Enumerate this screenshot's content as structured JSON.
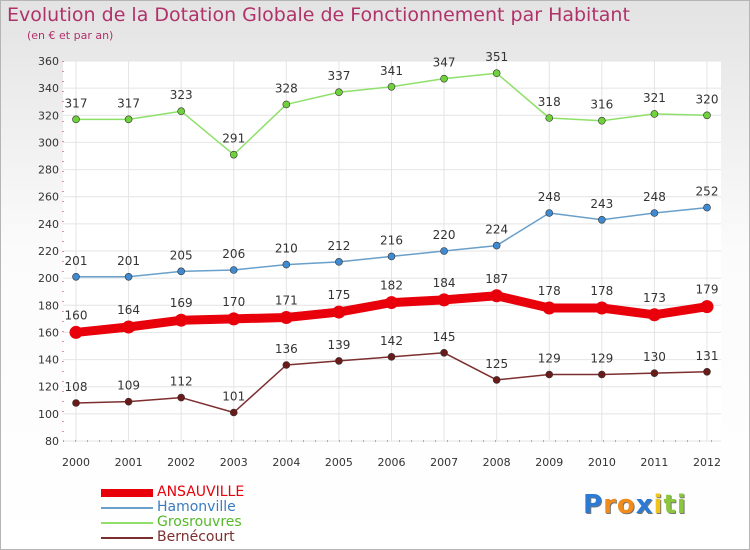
{
  "chart_data": {
    "type": "line",
    "title": "Evolution de la Dotation Globale de Fonctionnement par Habitant",
    "subtitle": "(en € et par an)",
    "x": [
      "2000",
      "2001",
      "2002",
      "2003",
      "2004",
      "2005",
      "2006",
      "2007",
      "2008",
      "2009",
      "2010",
      "2011",
      "2012"
    ],
    "ylim": [
      80,
      360
    ],
    "yticks": [
      80,
      100,
      120,
      140,
      160,
      180,
      200,
      220,
      240,
      260,
      280,
      300,
      320,
      340,
      360
    ],
    "grid": true,
    "legend_position": "bottom-left",
    "series": [
      {
        "name": "ANSAUVILLE",
        "color": "#e8000b",
        "emphasis": true,
        "values": [
          160,
          164,
          169,
          170,
          171,
          175,
          182,
          184,
          187,
          178,
          178,
          173,
          179
        ]
      },
      {
        "name": "Hamonville",
        "color": "#6a9fc9",
        "marker": "#3f8ad0",
        "values": [
          201,
          201,
          205,
          206,
          210,
          212,
          216,
          220,
          224,
          248,
          243,
          248,
          252
        ]
      },
      {
        "name": "Grosrouvres",
        "color": "#8fe06a",
        "marker": "#6fd13b",
        "values": [
          317,
          317,
          323,
          291,
          328,
          337,
          341,
          347,
          351,
          318,
          316,
          321,
          320
        ]
      },
      {
        "name": "Bernécourt",
        "color": "#7d2e2e",
        "marker": "#6b1a1a",
        "values": [
          108,
          109,
          112,
          101,
          136,
          139,
          142,
          145,
          125,
          129,
          129,
          130,
          131
        ]
      }
    ]
  },
  "logo": {
    "letters": [
      "P",
      "r",
      "o",
      "x",
      "i",
      "t",
      "i"
    ],
    "colors": [
      "#2b7bd6",
      "#f08c1b",
      "#f08c1b",
      "#2b7bd6",
      "#f0c419",
      "#8cc63f",
      "#8cc63f"
    ]
  }
}
